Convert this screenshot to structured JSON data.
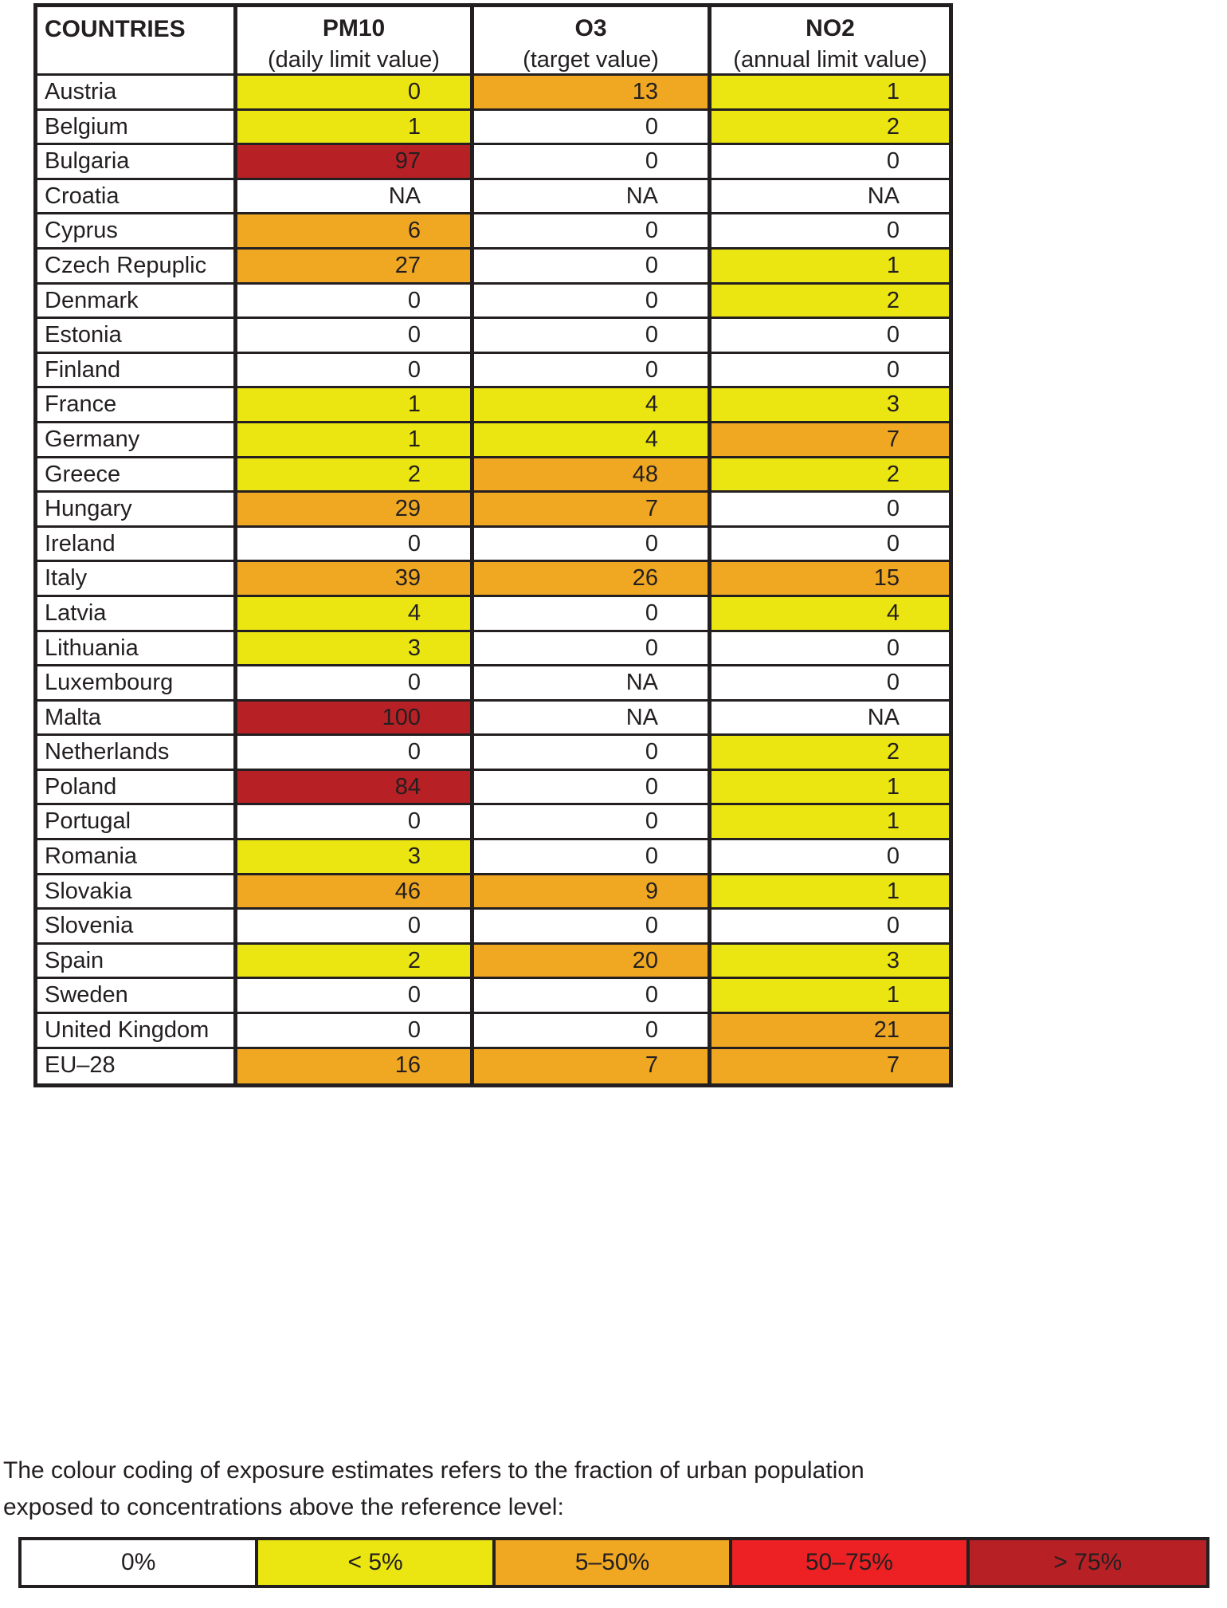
{
  "chart_data": {
    "type": "table",
    "header": {
      "countries": "COUNTRIES",
      "pm10_title": "PM10",
      "pm10_sub": "(daily limit value)",
      "o3_title": "O3",
      "o3_sub": "(target value)",
      "no2_title": "NO2",
      "no2_sub": "(annual limit value)"
    },
    "color_bands": {
      "zero": "#ffffff",
      "na": "#ffffff",
      "lt5": "#ebe611",
      "b5to50": "#f0a822",
      "b50to75": "#ed2124",
      "gt75": "#b72025"
    },
    "rows": [
      {
        "country": "Austria",
        "pm10": {
          "value": "0",
          "band": "lt5"
        },
        "o3": {
          "value": "13",
          "band": "b5to50"
        },
        "no2": {
          "value": "1",
          "band": "lt5"
        }
      },
      {
        "country": "Belgium",
        "pm10": {
          "value": "1",
          "band": "lt5"
        },
        "o3": {
          "value": "0",
          "band": "zero"
        },
        "no2": {
          "value": "2",
          "band": "lt5"
        }
      },
      {
        "country": "Bulgaria",
        "pm10": {
          "value": "97",
          "band": "gt75"
        },
        "o3": {
          "value": "0",
          "band": "zero"
        },
        "no2": {
          "value": "0",
          "band": "zero"
        }
      },
      {
        "country": "Croatia",
        "pm10": {
          "value": "NA",
          "band": "na"
        },
        "o3": {
          "value": "NA",
          "band": "na"
        },
        "no2": {
          "value": "NA",
          "band": "na"
        }
      },
      {
        "country": "Cyprus",
        "pm10": {
          "value": "6",
          "band": "b5to50"
        },
        "o3": {
          "value": "0",
          "band": "zero"
        },
        "no2": {
          "value": "0",
          "band": "zero"
        }
      },
      {
        "country": "Czech Repuplic",
        "pm10": {
          "value": "27",
          "band": "b5to50"
        },
        "o3": {
          "value": "0",
          "band": "zero"
        },
        "no2": {
          "value": "1",
          "band": "lt5"
        }
      },
      {
        "country": "Denmark",
        "pm10": {
          "value": "0",
          "band": "zero"
        },
        "o3": {
          "value": "0",
          "band": "zero"
        },
        "no2": {
          "value": "2",
          "band": "lt5"
        }
      },
      {
        "country": "Estonia",
        "pm10": {
          "value": "0",
          "band": "zero"
        },
        "o3": {
          "value": "0",
          "band": "zero"
        },
        "no2": {
          "value": "0",
          "band": "zero"
        }
      },
      {
        "country": "Finland",
        "pm10": {
          "value": "0",
          "band": "zero"
        },
        "o3": {
          "value": "0",
          "band": "zero"
        },
        "no2": {
          "value": "0",
          "band": "zero"
        }
      },
      {
        "country": "France",
        "pm10": {
          "value": "1",
          "band": "lt5"
        },
        "o3": {
          "value": "4",
          "band": "lt5"
        },
        "no2": {
          "value": "3",
          "band": "lt5"
        }
      },
      {
        "country": "Germany",
        "pm10": {
          "value": "1",
          "band": "lt5"
        },
        "o3": {
          "value": "4",
          "band": "lt5"
        },
        "no2": {
          "value": "7",
          "band": "b5to50"
        }
      },
      {
        "country": "Greece",
        "pm10": {
          "value": "2",
          "band": "lt5"
        },
        "o3": {
          "value": "48",
          "band": "b5to50"
        },
        "no2": {
          "value": "2",
          "band": "lt5"
        }
      },
      {
        "country": "Hungary",
        "pm10": {
          "value": "29",
          "band": "b5to50"
        },
        "o3": {
          "value": "7",
          "band": "b5to50"
        },
        "no2": {
          "value": "0",
          "band": "zero"
        }
      },
      {
        "country": "Ireland",
        "pm10": {
          "value": "0",
          "band": "zero"
        },
        "o3": {
          "value": "0",
          "band": "zero"
        },
        "no2": {
          "value": "0",
          "band": "zero"
        }
      },
      {
        "country": "Italy",
        "pm10": {
          "value": "39",
          "band": "b5to50"
        },
        "o3": {
          "value": "26",
          "band": "b5to50"
        },
        "no2": {
          "value": "15",
          "band": "b5to50"
        }
      },
      {
        "country": "Latvia",
        "pm10": {
          "value": "4",
          "band": "lt5"
        },
        "o3": {
          "value": "0",
          "band": "zero"
        },
        "no2": {
          "value": "4",
          "band": "lt5"
        }
      },
      {
        "country": "Lithuania",
        "pm10": {
          "value": "3",
          "band": "lt5"
        },
        "o3": {
          "value": "0",
          "band": "zero"
        },
        "no2": {
          "value": "0",
          "band": "zero"
        }
      },
      {
        "country": "Luxembourg",
        "pm10": {
          "value": "0",
          "band": "zero"
        },
        "o3": {
          "value": "NA",
          "band": "na"
        },
        "no2": {
          "value": "0",
          "band": "zero"
        }
      },
      {
        "country": "Malta",
        "pm10": {
          "value": "100",
          "band": "gt75"
        },
        "o3": {
          "value": "NA",
          "band": "na"
        },
        "no2": {
          "value": "NA",
          "band": "na"
        }
      },
      {
        "country": "Netherlands",
        "pm10": {
          "value": "0",
          "band": "zero"
        },
        "o3": {
          "value": "0",
          "band": "zero"
        },
        "no2": {
          "value": "2",
          "band": "lt5"
        }
      },
      {
        "country": "Poland",
        "pm10": {
          "value": "84",
          "band": "gt75"
        },
        "o3": {
          "value": "0",
          "band": "zero"
        },
        "no2": {
          "value": "1",
          "band": "lt5"
        }
      },
      {
        "country": "Portugal",
        "pm10": {
          "value": "0",
          "band": "zero"
        },
        "o3": {
          "value": "0",
          "band": "zero"
        },
        "no2": {
          "value": "1",
          "band": "lt5"
        }
      },
      {
        "country": "Romania",
        "pm10": {
          "value": "3",
          "band": "lt5"
        },
        "o3": {
          "value": "0",
          "band": "zero"
        },
        "no2": {
          "value": "0",
          "band": "zero"
        }
      },
      {
        "country": "Slovakia",
        "pm10": {
          "value": "46",
          "band": "b5to50"
        },
        "o3": {
          "value": "9",
          "band": "b5to50"
        },
        "no2": {
          "value": "1",
          "band": "lt5"
        }
      },
      {
        "country": "Slovenia",
        "pm10": {
          "value": "0",
          "band": "zero"
        },
        "o3": {
          "value": "0",
          "band": "zero"
        },
        "no2": {
          "value": "0",
          "band": "zero"
        }
      },
      {
        "country": "Spain",
        "pm10": {
          "value": "2",
          "band": "lt5"
        },
        "o3": {
          "value": "20",
          "band": "b5to50"
        },
        "no2": {
          "value": "3",
          "band": "lt5"
        }
      },
      {
        "country": "Sweden",
        "pm10": {
          "value": "0",
          "band": "zero"
        },
        "o3": {
          "value": "0",
          "band": "zero"
        },
        "no2": {
          "value": "1",
          "band": "lt5"
        }
      },
      {
        "country": "United Kingdom",
        "pm10": {
          "value": "0",
          "band": "zero"
        },
        "o3": {
          "value": "0",
          "band": "zero"
        },
        "no2": {
          "value": "21",
          "band": "b5to50"
        }
      },
      {
        "country": "EU–28",
        "pm10": {
          "value": "16",
          "band": "b5to50"
        },
        "o3": {
          "value": "7",
          "band": "b5to50"
        },
        "no2": {
          "value": "7",
          "band": "b5to50"
        }
      }
    ],
    "note": "The colour coding of exposure estimates refers to the fraction of urban population exposed to concentrations above the reference level:",
    "legend": [
      {
        "label": "0%",
        "band": "zero"
      },
      {
        "label": "< 5%",
        "band": "lt5"
      },
      {
        "label": "5–50%",
        "band": "b5to50"
      },
      {
        "label": "50–75%",
        "band": "b50to75"
      },
      {
        "label": "> 75%",
        "band": "gt75"
      }
    ]
  }
}
